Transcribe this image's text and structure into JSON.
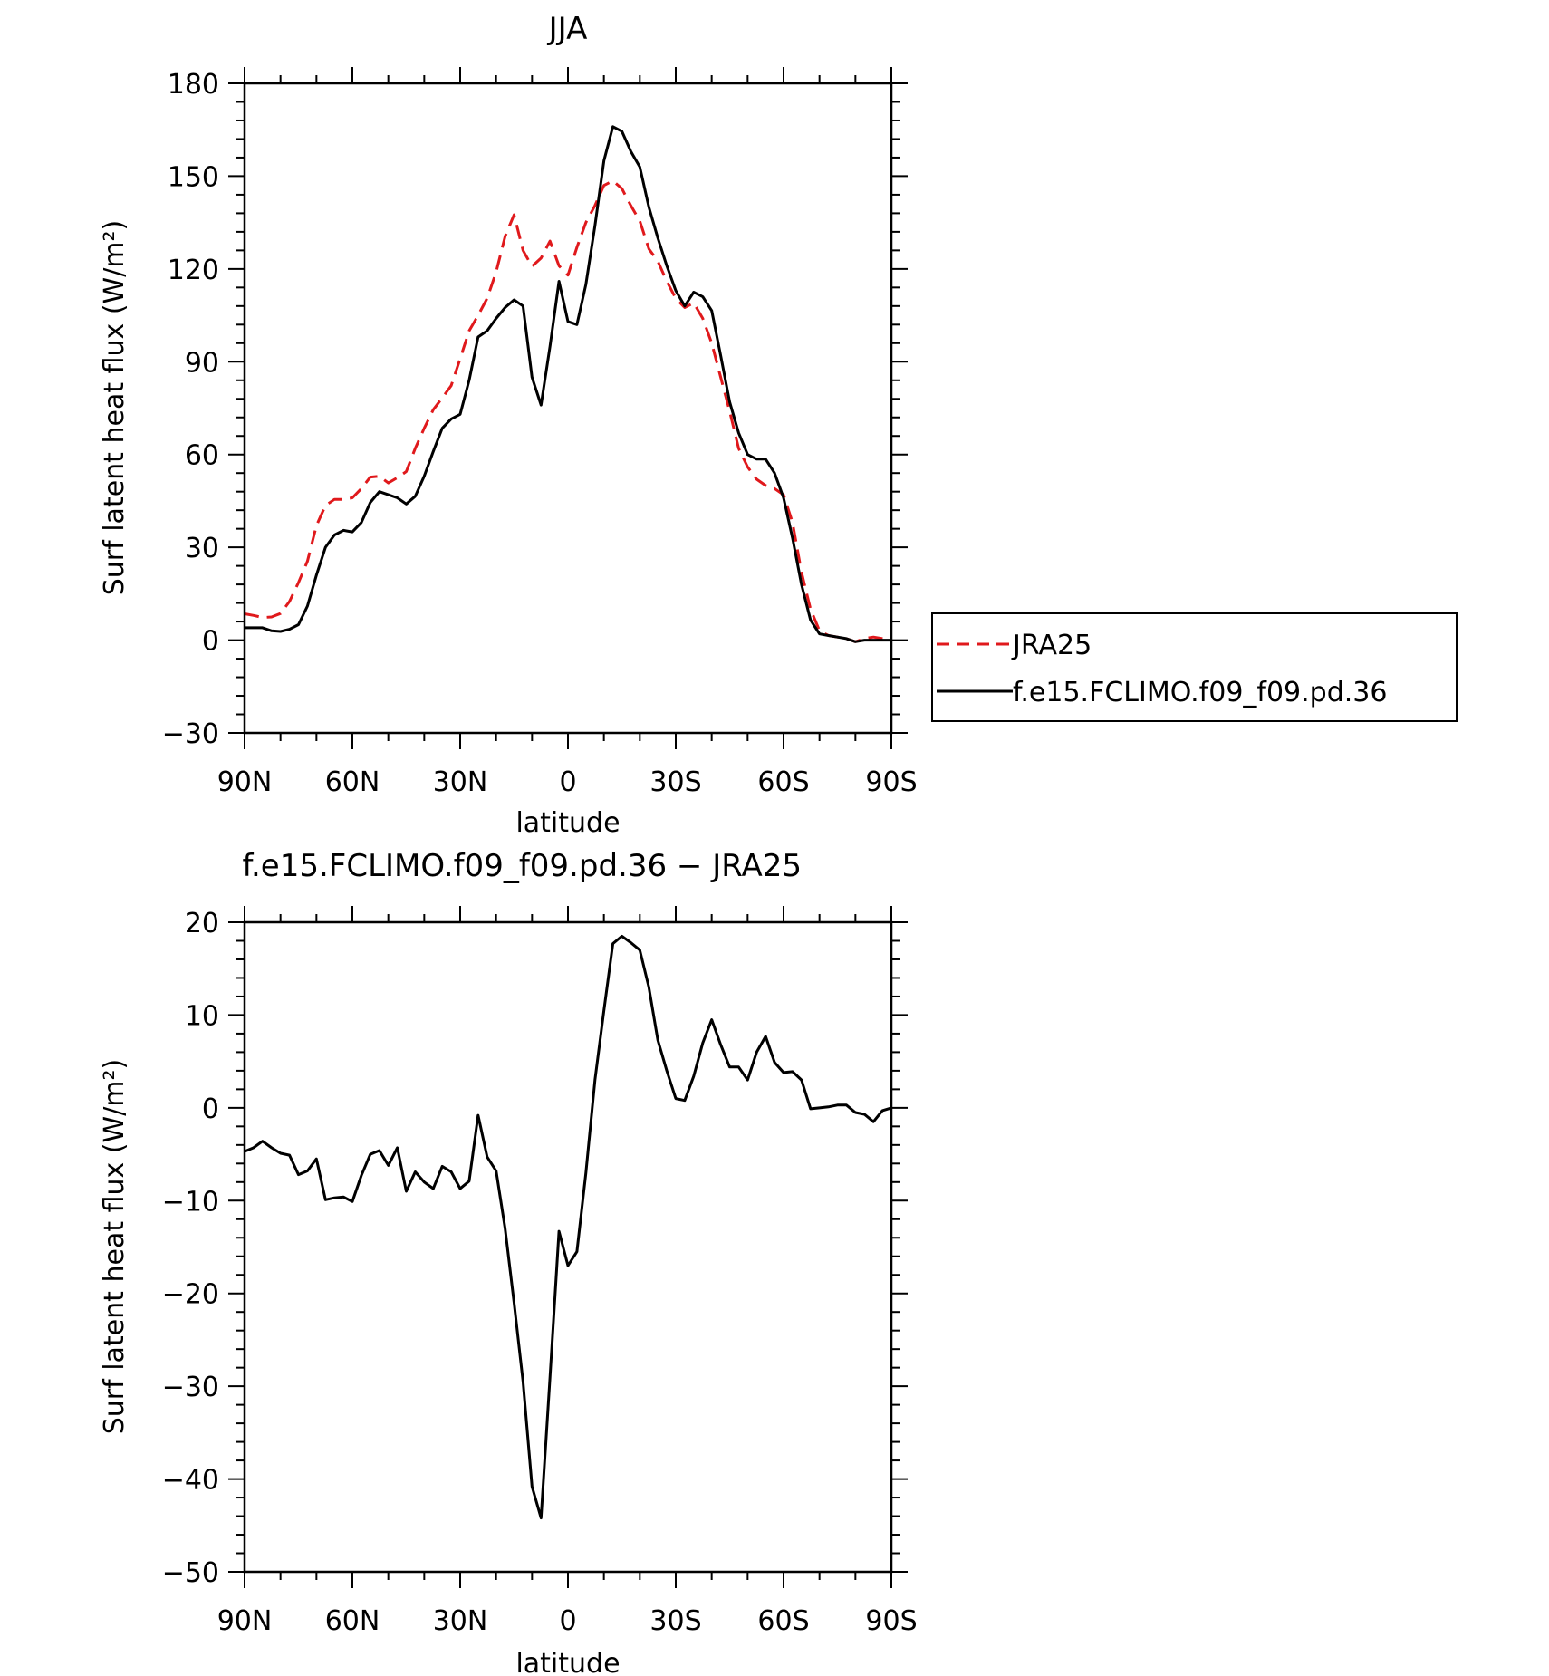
{
  "chart_data": [
    {
      "type": "line",
      "title": "JJA",
      "xlabel": "latitude",
      "ylabel": "Surf latent heat flux (W/m²)",
      "xlim": [
        90,
        -90
      ],
      "ylim": [
        -30,
        180
      ],
      "yticks": [
        -30,
        0,
        30,
        60,
        90,
        120,
        150,
        180
      ],
      "xticks": [
        90,
        60,
        30,
        0,
        -30,
        -60,
        -90
      ],
      "xtick_labels": [
        "90N",
        "60N",
        "30N",
        "0",
        "30S",
        "60S",
        "90S"
      ],
      "grid": false,
      "legend": {
        "placement": "outside-right",
        "entries": [
          "JRA25",
          "f.e15.FCLIMO.f09_f09.pd.36"
        ]
      },
      "x": [
        90,
        87.5,
        85,
        82.5,
        80,
        77.5,
        75,
        72.5,
        70,
        67.5,
        65,
        62.5,
        60,
        57.5,
        55,
        52.5,
        50,
        47.5,
        45,
        42.5,
        40,
        37.5,
        35,
        32.5,
        30,
        27.5,
        25,
        22.5,
        20,
        17.5,
        15,
        12.5,
        10,
        7.5,
        5,
        2.5,
        0,
        -2.5,
        -5,
        -7.5,
        -10,
        -12.5,
        -15,
        -17.5,
        -20,
        -22.5,
        -25,
        -27.5,
        -30,
        -32.5,
        -35,
        -37.5,
        -40,
        -42.5,
        -45,
        -47.5,
        -50,
        -52.5,
        -55,
        -57.5,
        -60,
        -62.5,
        -65,
        -67.5,
        -70,
        -72.5,
        -75,
        -77.5,
        -80,
        -82.5,
        -85,
        -87.5,
        -90
      ],
      "series": [
        {
          "name": "JRA25",
          "color": "#e0191c",
          "dash": "dashed",
          "values": [
            8.5,
            8,
            7.3,
            7.5,
            8.6,
            12.5,
            18.6,
            25.5,
            37,
            43.5,
            45.5,
            45.5,
            46,
            49,
            52.7,
            53,
            50.8,
            52.5,
            54.5,
            62,
            68.5,
            74.5,
            78.3,
            82.3,
            91,
            100,
            105,
            110.5,
            119,
            130.5,
            137.5,
            126,
            120.8,
            123.5,
            129,
            121,
            118,
            127,
            135,
            140.5,
            147,
            148.5,
            146,
            140.5,
            135.5,
            126.5,
            122.5,
            116,
            110.5,
            107.5,
            109,
            104,
            96,
            85,
            74,
            62,
            56,
            52,
            50,
            49,
            47,
            38,
            22,
            10,
            3,
            1.5,
            1,
            0.5,
            -0.5,
            0.5,
            1,
            0.5,
            0
          ]
        },
        {
          "name": "f.e15.FCLIMO.f09_f09.pd.36",
          "color": "#000000",
          "dash": "solid",
          "values": [
            4,
            4,
            4,
            3,
            2.8,
            3.5,
            5,
            11,
            21,
            30,
            34,
            35.5,
            35,
            38,
            44.5,
            48,
            47,
            46,
            44,
            46.5,
            53,
            61,
            68.5,
            71.5,
            73,
            84,
            98,
            100,
            104,
            107.5,
            110,
            108,
            85,
            76,
            95,
            116,
            103,
            102,
            115,
            134,
            155,
            166,
            164.5,
            158,
            153,
            140,
            130,
            121,
            113,
            108,
            112.5,
            111,
            106.5,
            92,
            77,
            67,
            60,
            58.5,
            58.5,
            54,
            46,
            33,
            18,
            6.5,
            2,
            1.5,
            1,
            0.5,
            -0.5,
            0,
            0,
            0,
            0
          ]
        }
      ]
    },
    {
      "type": "line",
      "title": "f.e15.FCLIMO.f09_f09.pd.36 − JRA25",
      "xlabel": "latitude",
      "ylabel": "Surf latent heat flux (W/m²)",
      "xlim": [
        90,
        -90
      ],
      "ylim": [
        -50,
        20
      ],
      "yticks": [
        -50,
        -40,
        -30,
        -20,
        -10,
        0,
        10,
        20
      ],
      "xticks": [
        90,
        60,
        30,
        0,
        -30,
        -60,
        -90
      ],
      "xtick_labels": [
        "90N",
        "60N",
        "30N",
        "0",
        "30S",
        "60S",
        "90S"
      ],
      "grid": false,
      "x": [
        90,
        87.5,
        85,
        82.5,
        80,
        77.5,
        75,
        72.5,
        70,
        67.5,
        65,
        62.5,
        60,
        57.5,
        55,
        52.5,
        50,
        47.5,
        45,
        42.5,
        40,
        37.5,
        35,
        32.5,
        30,
        27.5,
        25,
        22.5,
        20,
        17.5,
        15,
        12.5,
        10,
        7.5,
        5,
        2.5,
        0,
        -2.5,
        -5,
        -7.5,
        -10,
        -12.5,
        -15,
        -17.5,
        -20,
        -22.5,
        -25,
        -27.5,
        -30,
        -32.5,
        -35,
        -37.5,
        -40,
        -42.5,
        -45,
        -47.5,
        -50,
        -52.5,
        -55,
        -57.5,
        -60,
        -62.5,
        -65,
        -67.5,
        -70,
        -72.5,
        -75,
        -77.5,
        -80,
        -82.5,
        -85,
        -87.5,
        -90
      ],
      "series": [
        {
          "name": "",
          "color": "#000000",
          "dash": "solid",
          "values": [
            -4.7,
            -4.3,
            -3.6,
            -4.3,
            -4.9,
            -5.1,
            -7.2,
            -6.8,
            -5.5,
            -9.9,
            -9.7,
            -9.6,
            -10.1,
            -7.3,
            -5,
            -4.6,
            -6.2,
            -4.3,
            -9,
            -6.9,
            -8,
            -8.7,
            -6.3,
            -6.9,
            -8.7,
            -7.9,
            -0.8,
            -5.3,
            -6.8,
            -13,
            -21,
            -29.5,
            -40.8,
            -44.2,
            -29,
            -13.3,
            -17,
            -15.5,
            -7,
            3,
            10.5,
            17.7,
            18.5,
            17.8,
            17,
            13,
            7.3,
            4,
            1,
            0.8,
            3.4,
            7,
            9.5,
            6.8,
            4.4,
            4.4,
            3,
            6,
            7.7,
            4.9,
            3.8,
            3.9,
            3,
            -0.1,
            0,
            0.1,
            0.3,
            0.3,
            -0.5,
            -0.7,
            -1.5,
            -0.3,
            0
          ]
        }
      ]
    }
  ]
}
